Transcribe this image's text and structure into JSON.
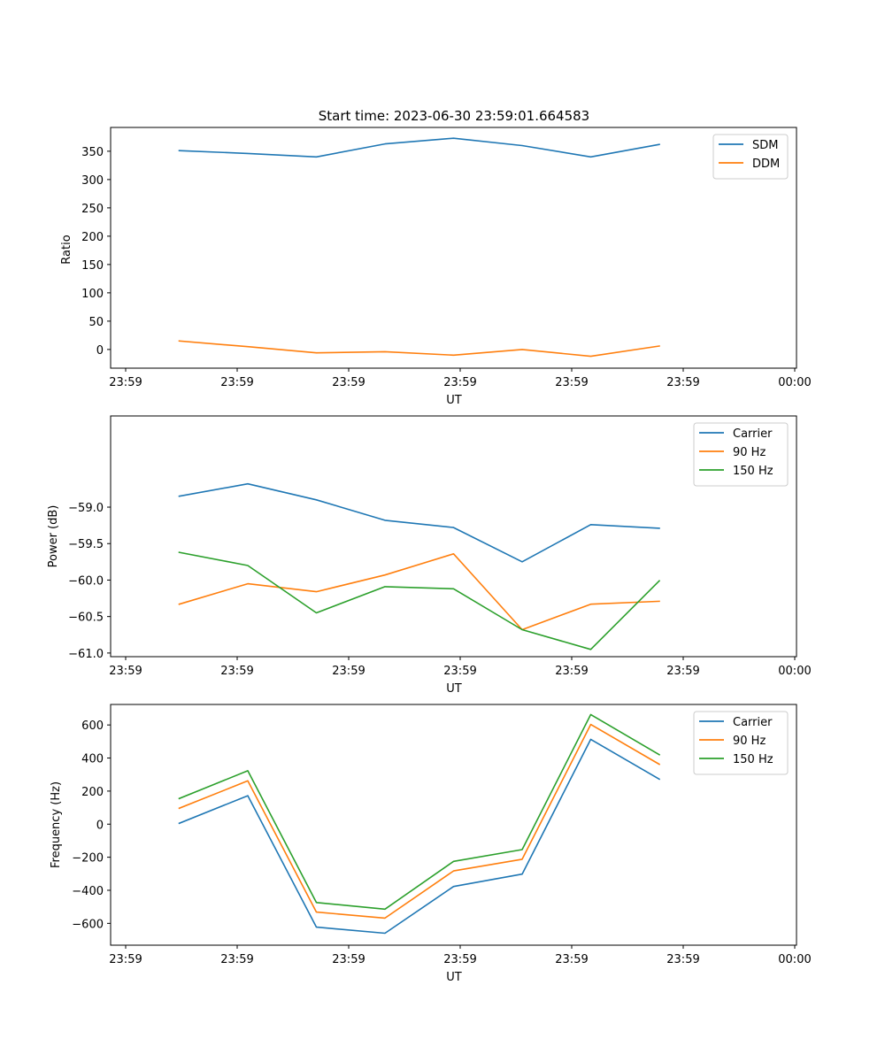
{
  "chart_data": [
    {
      "type": "line",
      "title": "Start time: 2023-06-30 23:59:01.664583",
      "xlabel": "UT",
      "ylabel": "Ratio",
      "x_tick_labels": [
        "23:59",
        "23:59",
        "23:59",
        "23:59",
        "23:59",
        "23:59",
        "00:00"
      ],
      "x": [
        1.0,
        2.0,
        3.0,
        4.0,
        5.0,
        6.0,
        7.0,
        8.0
      ],
      "xlim": [
        0,
        10
      ],
      "ylim": [
        -33,
        392
      ],
      "y_ticks": [
        0,
        50,
        100,
        150,
        200,
        250,
        300,
        350
      ],
      "y_tick_labels": [
        "0",
        "50",
        "100",
        "150",
        "200",
        "250",
        "300",
        "350"
      ],
      "legend_position": "upper right",
      "series": [
        {
          "name": "SDM",
          "color": "#1f77b4",
          "values": [
            351,
            346,
            340,
            363,
            373,
            360,
            340,
            362
          ]
        },
        {
          "name": "DDM",
          "color": "#ff7f0e",
          "values": [
            15,
            5,
            -6,
            -4,
            -10,
            0,
            -12,
            6
          ]
        }
      ]
    },
    {
      "type": "line",
      "title": "",
      "xlabel": "UT",
      "ylabel": "Power (dB)",
      "x_tick_labels": [
        "23:59",
        "23:59",
        "23:59",
        "23:59",
        "23:59",
        "23:59",
        "00:00"
      ],
      "x": [
        1.0,
        2.0,
        3.0,
        4.0,
        5.0,
        6.0,
        7.0,
        8.0
      ],
      "xlim": [
        0,
        10
      ],
      "ylim": [
        -61.05,
        -57.75
      ],
      "y_ticks": [
        -61.0,
        -60.5,
        -60.0,
        -59.5,
        -59.0
      ],
      "y_tick_labels": [
        "−61.0",
        "−60.5",
        "−60.0",
        "−59.5",
        "−59.0"
      ],
      "legend_position": "upper right",
      "series": [
        {
          "name": "Carrier",
          "color": "#1f77b4",
          "values": [
            -58.85,
            -58.68,
            -58.9,
            -59.18,
            -59.28,
            -59.75,
            -59.24,
            -59.29
          ]
        },
        {
          "name": "90 Hz",
          "color": "#ff7f0e",
          "values": [
            -60.33,
            -60.05,
            -60.16,
            -59.93,
            -59.64,
            -60.68,
            -60.33,
            -60.29
          ]
        },
        {
          "name": "150 Hz",
          "color": "#2ca02c",
          "values": [
            -59.62,
            -59.8,
            -60.45,
            -60.09,
            -60.12,
            -60.68,
            -60.95,
            -60.01
          ]
        }
      ]
    },
    {
      "type": "line",
      "title": "",
      "xlabel": "UT",
      "ylabel": "Frequency (Hz)",
      "x_tick_labels": [
        "23:59",
        "23:59",
        "23:59",
        "23:59",
        "23:59",
        "23:59",
        "00:00"
      ],
      "x": [
        1.0,
        2.0,
        3.0,
        4.0,
        5.0,
        6.0,
        7.0,
        8.0
      ],
      "xlim": [
        0,
        10
      ],
      "ylim": [
        -732,
        724
      ],
      "y_ticks": [
        -600,
        -400,
        -200,
        0,
        200,
        400,
        600
      ],
      "y_tick_labels": [
        "−600",
        "−400",
        "−200",
        "0",
        "200",
        "400",
        "600"
      ],
      "legend_position": "upper right",
      "series": [
        {
          "name": "Carrier",
          "color": "#1f77b4",
          "values": [
            5,
            172,
            -623,
            -660,
            -377,
            -302,
            513,
            272
          ]
        },
        {
          "name": "90 Hz",
          "color": "#ff7f0e",
          "values": [
            96,
            262,
            -532,
            -568,
            -283,
            -212,
            603,
            362
          ]
        },
        {
          "name": "150 Hz",
          "color": "#2ca02c",
          "values": [
            155,
            323,
            -474,
            -514,
            -225,
            -154,
            663,
            420
          ]
        }
      ]
    }
  ]
}
